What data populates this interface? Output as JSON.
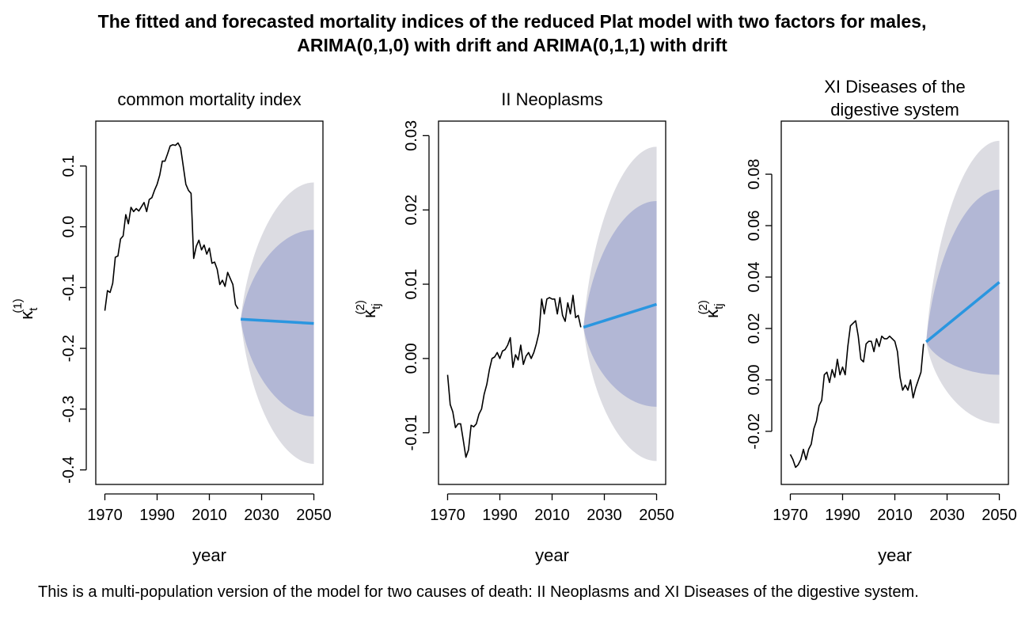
{
  "figure": {
    "title_line1": "The fitted and forecasted mortality indices of the reduced Plat model with two factors for males,",
    "title_line2": "ARIMA(0,1,0) with drift and ARIMA(0,1,1) with drift"
  },
  "colors": {
    "fitted_line": "#000000",
    "forecast_line": "#2a96e0",
    "band_outer": "#dcdce2",
    "band_inner": "#b2b7d5"
  },
  "caption": "This is a multi-population version of the model for two causes of death: II Neoplasms and XI Diseases of the digestive system.",
  "chart_data": [
    {
      "type": "line",
      "title_lines": [
        "common mortality index"
      ],
      "xlabel": "year",
      "ylabel_symbol": "κ",
      "ylabel_sub": "t",
      "ylabel_sup": "(1)",
      "xlim": [
        1970,
        2050
      ],
      "ylim": [
        -0.4,
        0.15
      ],
      "xticks": [
        1970,
        1990,
        2010,
        2030,
        2050
      ],
      "xtick_labels": [
        "1970",
        "1990",
        "2010",
        "2030",
        "2050"
      ],
      "yticks": [
        -0.4,
        -0.3,
        -0.2,
        -0.1,
        0.0,
        0.1
      ],
      "ytick_labels": [
        "-0.4",
        "-0.3",
        "-0.2",
        "-0.1",
        "0.0",
        "0.1"
      ],
      "fitted": {
        "x": [
          1970,
          1971,
          1972,
          1973,
          1974,
          1975,
          1976,
          1977,
          1978,
          1979,
          1980,
          1981,
          1982,
          1983,
          1984,
          1985,
          1986,
          1987,
          1988,
          1989,
          1990,
          1991,
          1992,
          1993,
          1994,
          1995,
          1996,
          1997,
          1998,
          1999,
          2000,
          2001,
          2002,
          2003,
          2004,
          2005,
          2006,
          2007,
          2008,
          2009,
          2010,
          2011,
          2012,
          2013,
          2014,
          2015,
          2016,
          2017,
          2018,
          2019,
          2020,
          2021
        ],
        "y": [
          -0.138,
          -0.105,
          -0.108,
          -0.093,
          -0.05,
          -0.048,
          -0.02,
          -0.015,
          0.02,
          0.005,
          0.032,
          0.025,
          0.03,
          0.026,
          0.033,
          0.04,
          0.025,
          0.045,
          0.048,
          0.06,
          0.07,
          0.085,
          0.108,
          0.108,
          0.12,
          0.133,
          0.135,
          0.134,
          0.138,
          0.13,
          0.1,
          0.07,
          0.06,
          0.055,
          -0.052,
          -0.032,
          -0.022,
          -0.038,
          -0.03,
          -0.045,
          -0.035,
          -0.06,
          -0.058,
          -0.07,
          -0.095,
          -0.088,
          -0.098,
          -0.075,
          -0.085,
          -0.095,
          -0.128,
          -0.135
        ]
      },
      "forecast": {
        "x": [
          2022,
          2050
        ],
        "y": [
          -0.152,
          -0.159
        ],
        "band_80_lower": [
          -0.153,
          -0.312
        ],
        "band_80_upper": [
          -0.152,
          -0.005
        ],
        "band_95_lower": [
          -0.153,
          -0.39
        ],
        "band_95_upper": [
          -0.152,
          0.073
        ]
      }
    },
    {
      "type": "line",
      "title_lines": [
        "II Neoplasms"
      ],
      "xlabel": "year",
      "ylabel_symbol": "κ",
      "ylabel_sub": "tj",
      "ylabel_sup": "(2)",
      "xlim": [
        1970,
        2050
      ],
      "ylim": [
        -0.015,
        0.03
      ],
      "xticks": [
        1970,
        1990,
        2010,
        2030,
        2050
      ],
      "xtick_labels": [
        "1970",
        "1990",
        "2010",
        "2030",
        "2050"
      ],
      "yticks": [
        -0.01,
        0.0,
        0.01,
        0.02,
        0.03
      ],
      "ytick_labels": [
        "-0.01",
        "0.00",
        "0.01",
        "0.02",
        "0.03"
      ],
      "fitted": {
        "x": [
          1970,
          1971,
          1972,
          1973,
          1974,
          1975,
          1976,
          1977,
          1978,
          1979,
          1980,
          1981,
          1982,
          1983,
          1984,
          1985,
          1986,
          1987,
          1988,
          1989,
          1990,
          1991,
          1992,
          1993,
          1994,
          1995,
          1996,
          1997,
          1998,
          1999,
          2000,
          2001,
          2002,
          2003,
          2004,
          2005,
          2006,
          2007,
          2008,
          2009,
          2010,
          2011,
          2012,
          2013,
          2014,
          2015,
          2016,
          2017,
          2018,
          2019,
          2020,
          2021
        ],
        "y": [
          -0.0022,
          -0.0062,
          -0.0072,
          -0.0093,
          -0.0088,
          -0.0088,
          -0.011,
          -0.0133,
          -0.0123,
          -0.009,
          -0.0092,
          -0.0088,
          -0.0075,
          -0.0068,
          -0.0048,
          -0.0035,
          -0.0015,
          0.0,
          0.0002,
          0.0008,
          0.0,
          0.001,
          0.0012,
          0.0018,
          0.0028,
          -0.0012,
          0.0005,
          -0.0002,
          0.0018,
          -0.0008,
          0.0003,
          0.0008,
          0.0,
          0.0008,
          0.002,
          0.0035,
          0.008,
          0.006,
          0.008,
          0.0082,
          0.008,
          0.008,
          0.006,
          0.0082,
          0.0058,
          0.005,
          0.0075,
          0.006,
          0.0085,
          0.0055,
          0.0058,
          0.0042
        ]
      },
      "forecast": {
        "x": [
          2022,
          2050
        ],
        "y": [
          0.0042,
          0.0073
        ],
        "band_80_lower": [
          0.0042,
          -0.0065
        ],
        "band_80_upper": [
          0.0042,
          0.0212
        ],
        "band_95_lower": [
          0.0042,
          -0.0138
        ],
        "band_95_upper": [
          0.0042,
          0.0285
        ]
      }
    },
    {
      "type": "line",
      "title_lines": [
        "XI Diseases of the",
        "digestive system"
      ],
      "xlabel": "year",
      "ylabel_symbol": "κ",
      "ylabel_sub": "tj",
      "ylabel_sup": "(2)",
      "xlim": [
        1970,
        2050
      ],
      "ylim": [
        -0.035,
        0.095
      ],
      "xticks": [
        1970,
        1990,
        2010,
        2030,
        2050
      ],
      "xtick_labels": [
        "1970",
        "1990",
        "2010",
        "2030",
        "2050"
      ],
      "yticks": [
        -0.02,
        0.0,
        0.02,
        0.04,
        0.06,
        0.08
      ],
      "ytick_labels": [
        "-0.02",
        "0.00",
        "0.02",
        "0.04",
        "0.06",
        "0.08"
      ],
      "fitted": {
        "x": [
          1970,
          1971,
          1972,
          1973,
          1974,
          1975,
          1976,
          1977,
          1978,
          1979,
          1980,
          1981,
          1982,
          1983,
          1984,
          1985,
          1986,
          1987,
          1988,
          1989,
          1990,
          1991,
          1992,
          1993,
          1994,
          1995,
          1996,
          1997,
          1998,
          1999,
          2000,
          2001,
          2002,
          2003,
          2004,
          2005,
          2006,
          2007,
          2008,
          2009,
          2010,
          2011,
          2012,
          2013,
          2014,
          2015,
          2016,
          2017,
          2018,
          2019,
          2020,
          2021
        ],
        "y": [
          -0.029,
          -0.031,
          -0.034,
          -0.033,
          -0.031,
          -0.027,
          -0.031,
          -0.027,
          -0.025,
          -0.019,
          -0.016,
          -0.01,
          -0.008,
          0.002,
          0.003,
          -0.001,
          0.004,
          0.001,
          0.008,
          0.002,
          0.005,
          0.002,
          0.013,
          0.021,
          0.022,
          0.023,
          0.017,
          0.008,
          0.007,
          0.014,
          0.015,
          0.015,
          0.011,
          0.016,
          0.013,
          0.017,
          0.016,
          0.016,
          0.017,
          0.016,
          0.015,
          0.011,
          0.001,
          -0.004,
          -0.002,
          -0.004,
          0.0,
          -0.007,
          -0.003,
          0.0,
          0.003,
          0.014
        ]
      },
      "forecast": {
        "x": [
          2022,
          2050
        ],
        "y": [
          0.0148,
          0.038
        ],
        "band_80_lower": [
          0.0148,
          0.002
        ],
        "band_80_upper": [
          0.0148,
          0.074
        ],
        "band_95_lower": [
          0.0148,
          -0.017
        ],
        "band_95_upper": [
          0.0148,
          0.093
        ]
      }
    }
  ]
}
